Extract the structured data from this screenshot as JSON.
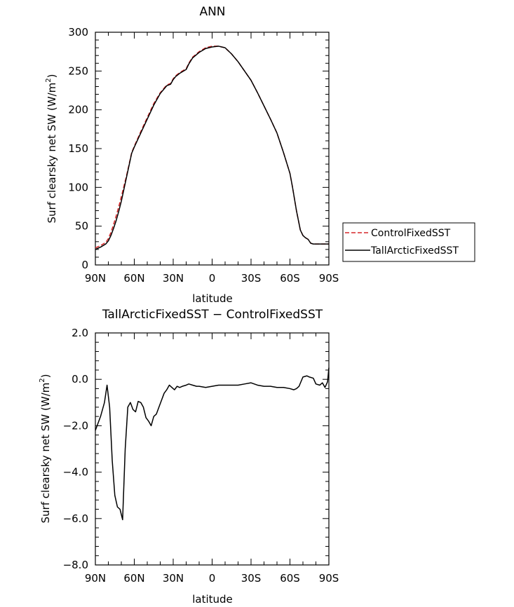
{
  "chart_data": [
    {
      "type": "line",
      "title": "ANN",
      "xlabel": "latitude",
      "ylabel": "Surf clearsky net SW (W/m²)",
      "ylabel_main": "Surf clearsky net SW (W/m",
      "ylabel_sup": "2",
      "ylabel_end": ")",
      "xlim": [
        90,
        -90
      ],
      "ylim": [
        0,
        300
      ],
      "xticks": [
        90,
        60,
        30,
        0,
        -30,
        -60,
        -90
      ],
      "xtick_labels": [
        "90N",
        "60N",
        "30N",
        "0",
        "30S",
        "60S",
        "90S"
      ],
      "yticks": [
        0,
        50,
        100,
        150,
        200,
        250,
        300
      ],
      "ytick_labels": [
        "0",
        "50",
        "100",
        "150",
        "200",
        "250",
        "300"
      ],
      "legend": "outside-right",
      "grid": false,
      "series": [
        {
          "name": "ControlFixedSST",
          "color": "#d62728",
          "dash": "dashed",
          "x": [
            90,
            86,
            82,
            80,
            78,
            76,
            74,
            72,
            70,
            66,
            62,
            60,
            55,
            50,
            45,
            40,
            35,
            32,
            30,
            28,
            25,
            20,
            18,
            15,
            10,
            5,
            0,
            -5,
            -10,
            -15,
            -20,
            -25,
            -30,
            -35,
            -40,
            -45,
            -50,
            -55,
            -60,
            -62,
            -65,
            -68,
            -70,
            -72,
            -74,
            -76,
            -78,
            -80,
            -82,
            -85,
            -88,
            -90
          ],
          "y": [
            22,
            25,
            29,
            34,
            42,
            52,
            63,
            75,
            88,
            115,
            145,
            153,
            172,
            190,
            208,
            222,
            232,
            234,
            240,
            244,
            248,
            253,
            260,
            268,
            275,
            280,
            282,
            282,
            280,
            272,
            262,
            250,
            238,
            222,
            205,
            188,
            170,
            145,
            118,
            100,
            70,
            45,
            38,
            35,
            33,
            28,
            27,
            27,
            27,
            27,
            27,
            27
          ]
        },
        {
          "name": "TallArcticFixedSST",
          "color": "#000000",
          "dash": "solid",
          "x": [
            90,
            86,
            82,
            80,
            78,
            76,
            74,
            72,
            70,
            66,
            62,
            60,
            55,
            50,
            45,
            40,
            35,
            32,
            30,
            28,
            25,
            20,
            18,
            15,
            10,
            5,
            0,
            -5,
            -10,
            -15,
            -20,
            -25,
            -30,
            -35,
            -40,
            -45,
            -50,
            -55,
            -60,
            -62,
            -65,
            -68,
            -70,
            -72,
            -74,
            -76,
            -78,
            -80,
            -82,
            -85,
            -88,
            -90
          ],
          "y": [
            20,
            23,
            27,
            31,
            38,
            47,
            57,
            69,
            82,
            113,
            144,
            152,
            170,
            188,
            206,
            221,
            231,
            233,
            239,
            243,
            247,
            252,
            259,
            267,
            274,
            279,
            281,
            282,
            280,
            272,
            262,
            250,
            238,
            222,
            205,
            188,
            170,
            145,
            118,
            100,
            70,
            45,
            38,
            35,
            33,
            28,
            27,
            27,
            27,
            27,
            27,
            27
          ]
        }
      ]
    },
    {
      "type": "line",
      "title": "TallArcticFixedSST − ControlFixedSST",
      "xlabel": "latitude",
      "ylabel": "Surf clearsky net SW (W/m²)",
      "ylabel_main": "Surf clearsky net SW (W/m",
      "ylabel_sup": "2",
      "ylabel_end": ")",
      "xlim": [
        90,
        -90
      ],
      "ylim": [
        -8,
        2
      ],
      "xticks": [
        90,
        60,
        30,
        0,
        -30,
        -60,
        -90
      ],
      "xtick_labels": [
        "90N",
        "60N",
        "30N",
        "0",
        "30S",
        "60S",
        "90S"
      ],
      "yticks": [
        2,
        0,
        -2,
        -4,
        -6,
        -8
      ],
      "ytick_labels": [
        "2.0",
        "0.0",
        "−2.0",
        "−4.0",
        "−6.0",
        "−8.0"
      ],
      "grid": false,
      "series": [
        {
          "color": "#000000",
          "dash": "solid",
          "x": [
            90,
            86,
            83,
            81,
            79,
            77,
            75,
            73,
            71,
            69,
            67,
            65,
            63,
            61,
            59,
            57,
            55,
            53,
            51,
            49,
            47,
            45,
            43,
            41,
            39,
            37,
            35,
            33,
            31,
            29,
            27,
            25,
            23,
            20,
            18,
            15,
            12,
            10,
            5,
            0,
            -5,
            -10,
            -15,
            -20,
            -25,
            -30,
            -35,
            -40,
            -45,
            -50,
            -55,
            -60,
            -63,
            -65,
            -67,
            -70,
            -73,
            -75,
            -78,
            -80,
            -83,
            -85,
            -87,
            -89,
            -90
          ],
          "y": [
            -2.2,
            -1.6,
            -1.0,
            -0.25,
            -1.2,
            -3.5,
            -5.0,
            -5.5,
            -5.6,
            -6.05,
            -3.0,
            -1.2,
            -1.0,
            -1.3,
            -1.4,
            -0.95,
            -1.0,
            -1.2,
            -1.65,
            -1.8,
            -2.0,
            -1.6,
            -1.5,
            -1.2,
            -0.9,
            -0.6,
            -0.45,
            -0.25,
            -0.35,
            -0.45,
            -0.3,
            -0.35,
            -0.3,
            -0.25,
            -0.2,
            -0.25,
            -0.3,
            -0.3,
            -0.35,
            -0.3,
            -0.25,
            -0.25,
            -0.25,
            -0.25,
            -0.2,
            -0.15,
            -0.25,
            -0.3,
            -0.3,
            -0.35,
            -0.35,
            -0.4,
            -0.45,
            -0.4,
            -0.3,
            0.1,
            0.15,
            0.1,
            0.05,
            -0.2,
            -0.25,
            -0.15,
            -0.35,
            -0.1,
            0.5
          ]
        }
      ]
    }
  ]
}
